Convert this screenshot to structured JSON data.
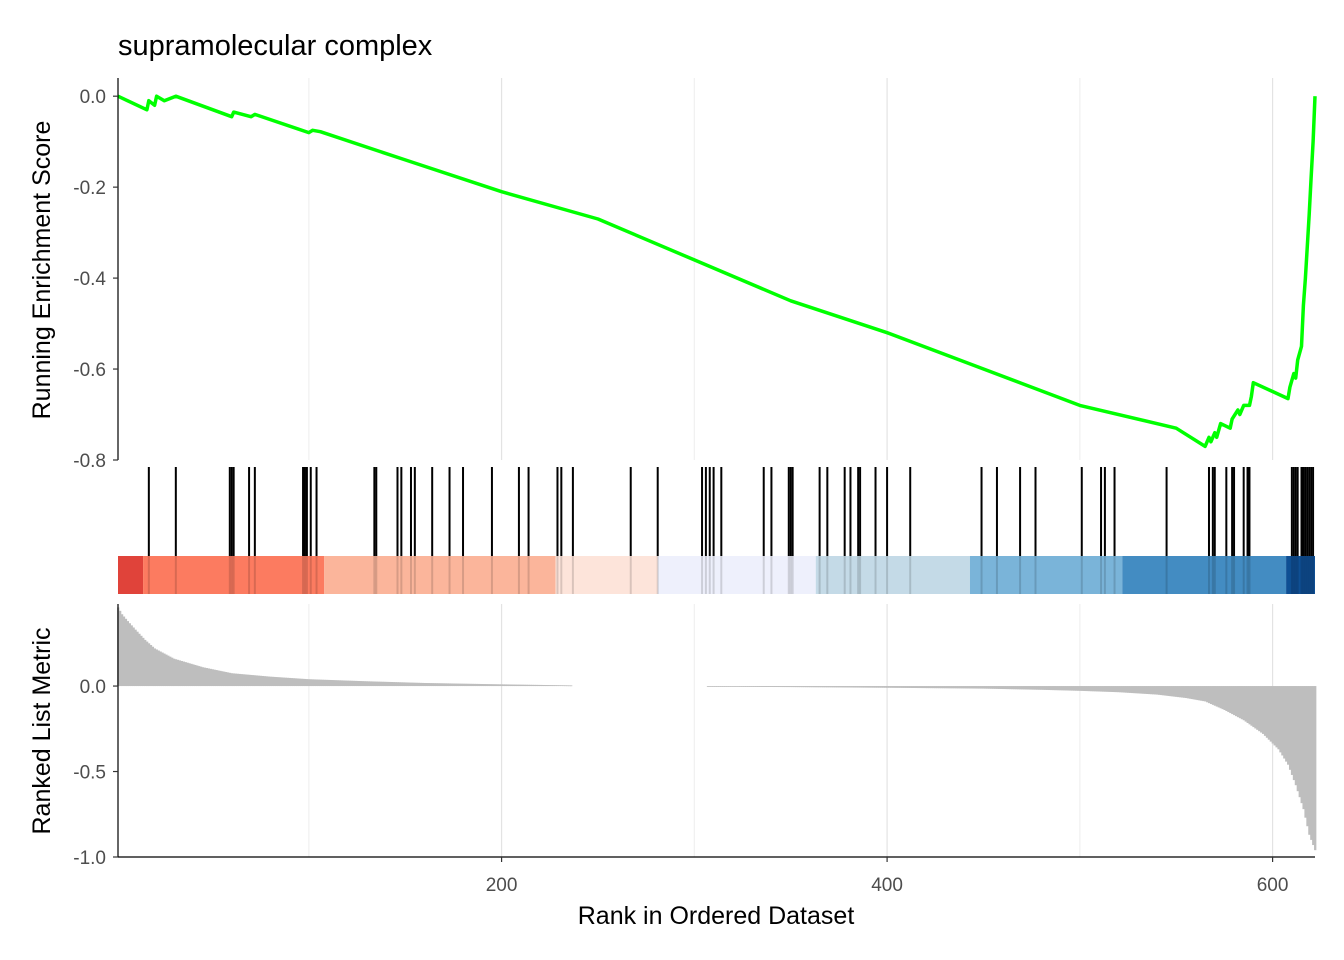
{
  "chart_data": {
    "type": "line",
    "title": "supramolecular complex",
    "xlabel": "Rank in Ordered Dataset",
    "xlim": [
      1,
      622
    ],
    "x_ticks": [
      200,
      400,
      600
    ],
    "grid": "vertical-major",
    "panels": {
      "running_score": {
        "ylabel": "Running Enrichment Score",
        "ylim": [
          -0.8,
          0.04
        ],
        "y_ticks": [
          0.0,
          -0.2,
          -0.4,
          -0.6,
          -0.8
        ],
        "line_color": "#00FF00",
        "points": [
          [
            1,
            0.0
          ],
          [
            16,
            -0.03
          ],
          [
            17,
            -0.01
          ],
          [
            20,
            -0.02
          ],
          [
            21,
            0.0
          ],
          [
            25,
            -0.01
          ],
          [
            31,
            0.0
          ],
          [
            60,
            -0.045
          ],
          [
            61,
            -0.035
          ],
          [
            70,
            -0.045
          ],
          [
            72,
            -0.04
          ],
          [
            100,
            -0.08
          ],
          [
            102,
            -0.075
          ],
          [
            106,
            -0.078
          ],
          [
            150,
            -0.14
          ],
          [
            200,
            -0.21
          ],
          [
            250,
            -0.27
          ],
          [
            300,
            -0.36
          ],
          [
            350,
            -0.45
          ],
          [
            400,
            -0.52
          ],
          [
            450,
            -0.6
          ],
          [
            500,
            -0.68
          ],
          [
            550,
            -0.73
          ],
          [
            565,
            -0.77
          ],
          [
            567,
            -0.75
          ],
          [
            568,
            -0.76
          ],
          [
            570,
            -0.74
          ],
          [
            571,
            -0.75
          ],
          [
            573,
            -0.72
          ],
          [
            578,
            -0.73
          ],
          [
            579,
            -0.71
          ],
          [
            582,
            -0.69
          ],
          [
            583,
            -0.7
          ],
          [
            585,
            -0.68
          ],
          [
            588,
            -0.68
          ],
          [
            589,
            -0.66
          ],
          [
            590,
            -0.63
          ],
          [
            608,
            -0.665
          ],
          [
            609,
            -0.64
          ],
          [
            611,
            -0.61
          ],
          [
            612,
            -0.62
          ],
          [
            613,
            -0.58
          ],
          [
            615,
            -0.55
          ],
          [
            616,
            -0.46
          ],
          [
            617,
            -0.4
          ],
          [
            618,
            -0.33
          ],
          [
            619,
            -0.26
          ],
          [
            620,
            -0.18
          ],
          [
            621,
            -0.1
          ],
          [
            622,
            0.0
          ]
        ]
      },
      "hits": {
        "positions": [
          17,
          31,
          59,
          60,
          61,
          69,
          72,
          97,
          98,
          99,
          101,
          104,
          134,
          135,
          146,
          148,
          153,
          155,
          164,
          173,
          180,
          195,
          209,
          214,
          229,
          231,
          237,
          267,
          281,
          304,
          306,
          308,
          310,
          314,
          336,
          340,
          349,
          350,
          351,
          365,
          369,
          378,
          381,
          385,
          386,
          394,
          400,
          412,
          449,
          457,
          469,
          477,
          501,
          511,
          513,
          518,
          545,
          567,
          569,
          570,
          576,
          579,
          580,
          585,
          587,
          588,
          610,
          611,
          612,
          613,
          615,
          616,
          617,
          618,
          619,
          620,
          621
        ],
        "color_bands": [
          {
            "from": 1,
            "to": 14,
            "color": "#E0433A"
          },
          {
            "from": 14,
            "to": 108,
            "color": "#FC7B60"
          },
          {
            "from": 108,
            "to": 228,
            "color": "#FBB59B"
          },
          {
            "from": 228,
            "to": 281,
            "color": "#FDE4DA"
          },
          {
            "from": 281,
            "to": 363,
            "color": "#EEF0FC"
          },
          {
            "from": 363,
            "to": 443,
            "color": "#C4DAE7"
          },
          {
            "from": 443,
            "to": 522,
            "color": "#7AB4D9"
          },
          {
            "from": 522,
            "to": 607,
            "color": "#438CC2"
          },
          {
            "from": 607,
            "to": 622,
            "color": "#0E4F94"
          }
        ]
      },
      "ranked_metric": {
        "ylabel": "Ranked List Metric",
        "ylim": [
          -1.0,
          0.48
        ],
        "y_ticks": [
          0.0,
          -0.5,
          -1.0
        ],
        "bar_color": "#BEBEBE",
        "gap": [
          236,
          307
        ],
        "points": [
          [
            1,
            0.46
          ],
          [
            3,
            0.42
          ],
          [
            6,
            0.38
          ],
          [
            10,
            0.33
          ],
          [
            15,
            0.27
          ],
          [
            20,
            0.22
          ],
          [
            30,
            0.16
          ],
          [
            45,
            0.11
          ],
          [
            60,
            0.075
          ],
          [
            80,
            0.055
          ],
          [
            100,
            0.04
          ],
          [
            130,
            0.028
          ],
          [
            160,
            0.018
          ],
          [
            200,
            0.01
          ],
          [
            235,
            0.004
          ],
          [
            308,
            -0.004
          ],
          [
            350,
            -0.006
          ],
          [
            400,
            -0.01
          ],
          [
            450,
            -0.015
          ],
          [
            480,
            -0.022
          ],
          [
            500,
            -0.028
          ],
          [
            520,
            -0.036
          ],
          [
            540,
            -0.05
          ],
          [
            555,
            -0.07
          ],
          [
            565,
            -0.09
          ],
          [
            575,
            -0.14
          ],
          [
            585,
            -0.2
          ],
          [
            595,
            -0.28
          ],
          [
            603,
            -0.37
          ],
          [
            608,
            -0.46
          ],
          [
            612,
            -0.58
          ],
          [
            616,
            -0.72
          ],
          [
            619,
            -0.87
          ],
          [
            622,
            -0.96
          ]
        ]
      }
    }
  }
}
